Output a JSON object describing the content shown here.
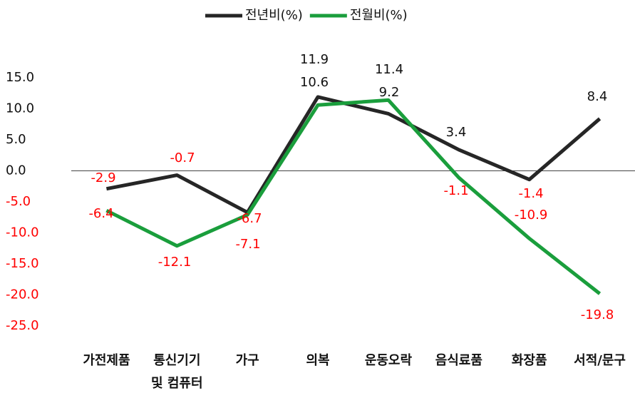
{
  "chart_data": {
    "type": "line",
    "categories": [
      "가전제품",
      "통신기기\n및 컴퓨터",
      "가구",
      "의복",
      "운동오락",
      "음식료품",
      "화장품",
      "서적/문구"
    ],
    "series": [
      {
        "name": "전년비(%)",
        "color": "#262626",
        "values": [
          -2.9,
          -0.7,
          -6.7,
          11.9,
          9.2,
          3.4,
          -1.4,
          8.4
        ]
      },
      {
        "name": "전월비(%)",
        "color": "#1a9e3c",
        "values": [
          -6.4,
          -12.1,
          -7.1,
          10.6,
          11.4,
          -1.1,
          -10.9,
          -19.8
        ]
      }
    ],
    "ylim": [
      -25,
      15
    ],
    "yticks": [
      {
        "value": 15,
        "label": "15.0"
      },
      {
        "value": 10,
        "label": "10.0"
      },
      {
        "value": 5,
        "label": "5.0"
      },
      {
        "value": 0,
        "label": "0.0"
      },
      {
        "value": -5,
        "label": "-5.0"
      },
      {
        "value": -10,
        "label": "-10.0"
      },
      {
        "value": -15,
        "label": "-15.0"
      },
      {
        "value": -20,
        "label": "-20.0"
      },
      {
        "value": -25,
        "label": "-25.0"
      }
    ],
    "negative_color": "#ff0000",
    "legend": "top"
  }
}
